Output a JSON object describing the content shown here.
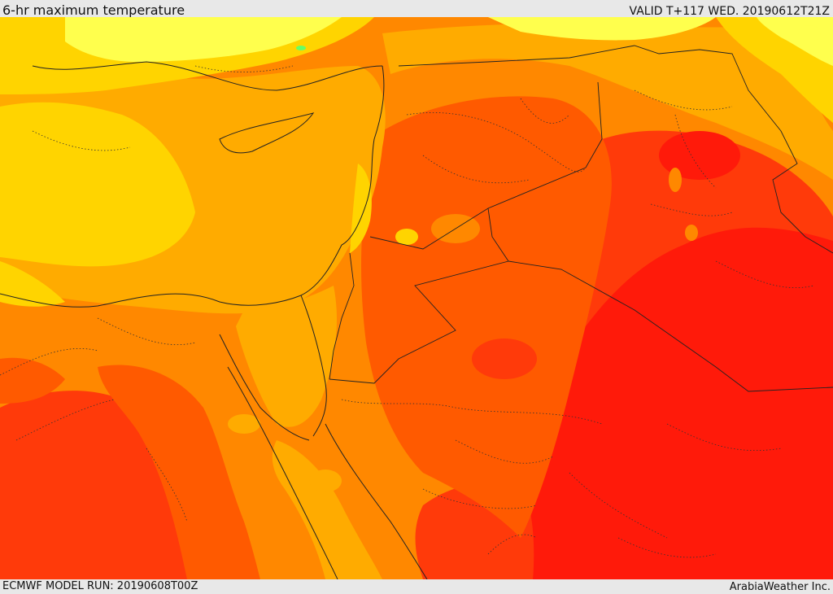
{
  "header": {
    "title": "6-hr maximum temperature",
    "valid": "VALID T+117 WED. 20190612T21Z"
  },
  "footer": {
    "model_run": "ECMWF MODEL RUN: 20190608T00Z",
    "credit": "ArabiaWeather Inc."
  },
  "colors": {
    "pale_yellow": "#ffff4d",
    "yellow": "#ffd400",
    "light_orange": "#ffab00",
    "orange": "#ff8800",
    "dark_orange": "#ff5a00",
    "red_orange": "#ff3a0a",
    "red": "#ff1a0a",
    "green_spot": "#66ff66"
  }
}
